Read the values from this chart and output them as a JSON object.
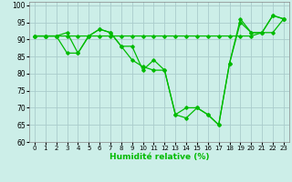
{
  "xlabel": "Humidité relative (%)",
  "bg_color": "#cceee8",
  "grid_color": "#aacccc",
  "line_color": "#00bb00",
  "ylim": [
    60,
    101
  ],
  "xlim": [
    -0.5,
    23.5
  ],
  "yticks": [
    60,
    65,
    70,
    75,
    80,
    85,
    90,
    95,
    100
  ],
  "xticks": [
    0,
    1,
    2,
    3,
    4,
    5,
    6,
    7,
    8,
    9,
    10,
    11,
    12,
    13,
    14,
    15,
    16,
    17,
    18,
    19,
    20,
    21,
    22,
    23
  ],
  "series": [
    [
      91,
      91,
      91,
      91,
      91,
      91,
      91,
      91,
      91,
      91,
      91,
      91,
      91,
      91,
      91,
      91,
      91,
      91,
      91,
      91,
      91,
      92,
      92,
      96
    ],
    [
      91,
      91,
      91,
      92,
      86,
      91,
      93,
      92,
      88,
      88,
      81,
      84,
      81,
      68,
      67,
      70,
      68,
      65,
      83,
      96,
      92,
      92,
      97,
      96
    ],
    [
      91,
      91,
      91,
      86,
      86,
      91,
      93,
      92,
      88,
      84,
      82,
      81,
      81,
      68,
      70,
      70,
      68,
      65,
      83,
      95,
      92,
      92,
      97,
      96
    ]
  ]
}
